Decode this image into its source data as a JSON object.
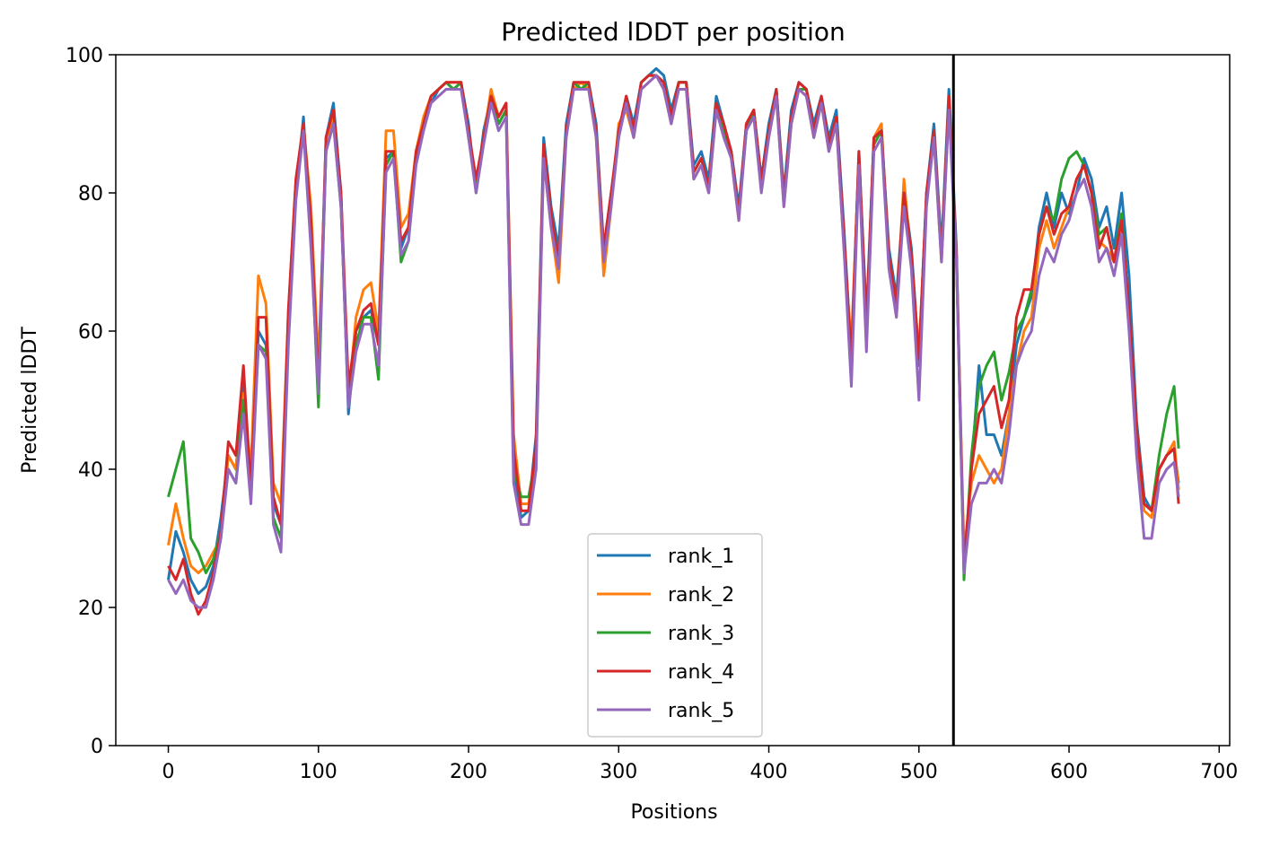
{
  "chart_data": {
    "type": "line",
    "title": "Predicted lDDT per position",
    "xlabel": "Positions",
    "ylabel": "Predicted lDDT",
    "xlim": [
      -35,
      707
    ],
    "ylim": [
      0,
      100
    ],
    "xticks": [
      0,
      100,
      200,
      300,
      400,
      500,
      600,
      700
    ],
    "yticks": [
      0,
      20,
      40,
      60,
      80,
      100
    ],
    "xtick_labels": [
      "0",
      "100",
      "200",
      "300",
      "400",
      "500",
      "600",
      "700"
    ],
    "ytick_labels": [
      "0",
      "20",
      "40",
      "60",
      "80",
      "100"
    ],
    "grid": false,
    "legend_position": "lower center",
    "vline": 523,
    "x": [
      0,
      5,
      10,
      15,
      20,
      25,
      30,
      35,
      40,
      45,
      50,
      55,
      60,
      65,
      70,
      75,
      80,
      85,
      90,
      95,
      100,
      105,
      110,
      115,
      120,
      125,
      130,
      135,
      140,
      145,
      150,
      155,
      160,
      165,
      170,
      175,
      180,
      185,
      190,
      195,
      200,
      205,
      210,
      215,
      220,
      225,
      230,
      235,
      240,
      245,
      250,
      255,
      260,
      265,
      270,
      275,
      280,
      285,
      290,
      295,
      300,
      305,
      310,
      315,
      320,
      325,
      330,
      335,
      340,
      345,
      350,
      355,
      360,
      365,
      370,
      375,
      380,
      385,
      390,
      395,
      400,
      405,
      410,
      415,
      420,
      425,
      430,
      435,
      440,
      445,
      450,
      455,
      460,
      465,
      470,
      475,
      480,
      485,
      490,
      495,
      500,
      505,
      510,
      515,
      520,
      525,
      530,
      535,
      540,
      545,
      550,
      555,
      560,
      565,
      570,
      575,
      580,
      585,
      590,
      595,
      600,
      605,
      610,
      615,
      620,
      625,
      630,
      635,
      640,
      645,
      650,
      655,
      660,
      665,
      670,
      673
    ],
    "series": [
      {
        "name": "rank_1",
        "color": "#1f77b4",
        "values": [
          24,
          31,
          28,
          24,
          22,
          23,
          26,
          33,
          42,
          40,
          52,
          36,
          60,
          58,
          35,
          32,
          60,
          80,
          91,
          73,
          52,
          88,
          93,
          80,
          48,
          60,
          62,
          63,
          58,
          85,
          86,
          72,
          75,
          85,
          90,
          93,
          95,
          96,
          95,
          96,
          90,
          80,
          89,
          94,
          90,
          92,
          40,
          33,
          34,
          45,
          88,
          78,
          72,
          90,
          96,
          95,
          96,
          90,
          72,
          80,
          88,
          94,
          90,
          96,
          97,
          98,
          97,
          92,
          96,
          96,
          84,
          86,
          82,
          94,
          90,
          86,
          78,
          90,
          92,
          82,
          90,
          95,
          80,
          92,
          96,
          95,
          90,
          94,
          88,
          92,
          75,
          56,
          86,
          62,
          88,
          89,
          72,
          65,
          80,
          72,
          56,
          80,
          90,
          72,
          95,
          72,
          25,
          40,
          55,
          45,
          45,
          42,
          48,
          58,
          62,
          65,
          75,
          80,
          75,
          80,
          77,
          80,
          85,
          82,
          75,
          78,
          72,
          80,
          68,
          47,
          36,
          34,
          40,
          42,
          43,
          38
        ]
      },
      {
        "name": "rank_2",
        "color": "#ff7f0e",
        "values": [
          29,
          35,
          30,
          26,
          25,
          26,
          28,
          30,
          42,
          40,
          51,
          40,
          68,
          64,
          38,
          35,
          63,
          82,
          90,
          78,
          55,
          86,
          91,
          78,
          50,
          62,
          66,
          67,
          60,
          89,
          89,
          75,
          77,
          86,
          91,
          94,
          95,
          96,
          96,
          96,
          88,
          82,
          88,
          95,
          91,
          93,
          45,
          35,
          35,
          42,
          85,
          75,
          67,
          88,
          95,
          96,
          95,
          88,
          68,
          78,
          90,
          92,
          88,
          95,
          96,
          97,
          95,
          90,
          95,
          95,
          82,
          84,
          80,
          92,
          89,
          85,
          76,
          90,
          92,
          81,
          88,
          94,
          78,
          90,
          95,
          94,
          88,
          93,
          86,
          90,
          72,
          58,
          85,
          60,
          88,
          90,
          70,
          62,
          82,
          70,
          57,
          79,
          88,
          70,
          93,
          70,
          28,
          38,
          42,
          40,
          38,
          40,
          48,
          55,
          60,
          62,
          72,
          76,
          72,
          75,
          78,
          82,
          84,
          80,
          73,
          72,
          70,
          76,
          62,
          45,
          34,
          33,
          40,
          42,
          44,
          37
        ]
      },
      {
        "name": "rank_3",
        "color": "#2ca02c",
        "values": [
          36,
          40,
          44,
          30,
          28,
          25,
          27,
          31,
          40,
          38,
          50,
          38,
          58,
          57,
          33,
          30,
          61,
          80,
          89,
          74,
          49,
          86,
          90,
          78,
          50,
          58,
          62,
          62,
          53,
          84,
          86,
          70,
          73,
          85,
          90,
          94,
          95,
          96,
          95,
          96,
          88,
          81,
          88,
          94,
          90,
          92,
          40,
          36,
          36,
          42,
          86,
          76,
          70,
          89,
          96,
          95,
          96,
          89,
          71,
          79,
          89,
          93,
          89,
          96,
          97,
          97,
          96,
          91,
          96,
          96,
          83,
          85,
          81,
          93,
          89,
          86,
          77,
          89,
          92,
          81,
          89,
          95,
          79,
          91,
          95,
          95,
          89,
          93,
          87,
          91,
          73,
          55,
          85,
          61,
          87,
          89,
          71,
          64,
          80,
          71,
          55,
          79,
          89,
          71,
          94,
          71,
          24,
          42,
          52,
          55,
          57,
          50,
          54,
          60,
          62,
          66,
          74,
          78,
          76,
          82,
          85,
          86,
          84,
          80,
          74,
          75,
          70,
          77,
          62,
          46,
          35,
          34,
          42,
          48,
          52,
          43
        ]
      },
      {
        "name": "rank_4",
        "color": "#d62728",
        "values": [
          26,
          24,
          27,
          22,
          19,
          21,
          25,
          31,
          44,
          42,
          55,
          37,
          62,
          62,
          36,
          32,
          63,
          82,
          90,
          76,
          52,
          88,
          92,
          80,
          52,
          60,
          63,
          64,
          58,
          86,
          86,
          73,
          75,
          86,
          90,
          94,
          95,
          96,
          96,
          96,
          89,
          82,
          88,
          94,
          91,
          93,
          43,
          34,
          34,
          44,
          87,
          77,
          70,
          89,
          96,
          96,
          96,
          89,
          72,
          80,
          89,
          94,
          89,
          96,
          97,
          97,
          96,
          91,
          96,
          96,
          83,
          85,
          81,
          93,
          90,
          86,
          77,
          90,
          92,
          82,
          89,
          95,
          79,
          91,
          96,
          95,
          89,
          94,
          87,
          91,
          74,
          56,
          86,
          61,
          88,
          89,
          71,
          64,
          80,
          71,
          56,
          80,
          89,
          71,
          94,
          71,
          26,
          40,
          48,
          50,
          52,
          46,
          50,
          62,
          66,
          66,
          74,
          78,
          74,
          77,
          78,
          82,
          84,
          80,
          72,
          75,
          70,
          76,
          63,
          46,
          35,
          34,
          40,
          42,
          43,
          35
        ]
      },
      {
        "name": "rank_5",
        "color": "#9467bd",
        "values": [
          24,
          22,
          24,
          21,
          20,
          20,
          24,
          30,
          40,
          38,
          48,
          35,
          58,
          56,
          32,
          28,
          58,
          79,
          89,
          72,
          51,
          86,
          90,
          78,
          49,
          57,
          61,
          61,
          55,
          83,
          85,
          71,
          73,
          84,
          89,
          93,
          94,
          95,
          95,
          95,
          88,
          80,
          87,
          93,
          89,
          91,
          38,
          32,
          32,
          40,
          85,
          75,
          69,
          88,
          95,
          95,
          95,
          88,
          70,
          78,
          88,
          93,
          88,
          95,
          96,
          97,
          95,
          90,
          95,
          95,
          82,
          84,
          80,
          92,
          88,
          85,
          76,
          89,
          91,
          80,
          88,
          94,
          78,
          90,
          95,
          94,
          88,
          93,
          86,
          90,
          72,
          52,
          84,
          57,
          86,
          88,
          69,
          62,
          78,
          69,
          50,
          78,
          88,
          70,
          92,
          70,
          25,
          35,
          38,
          38,
          40,
          38,
          45,
          55,
          58,
          60,
          68,
          72,
          70,
          74,
          76,
          80,
          82,
          78,
          70,
          72,
          68,
          74,
          60,
          42,
          30,
          30,
          38,
          40,
          41,
          36
        ]
      }
    ]
  }
}
